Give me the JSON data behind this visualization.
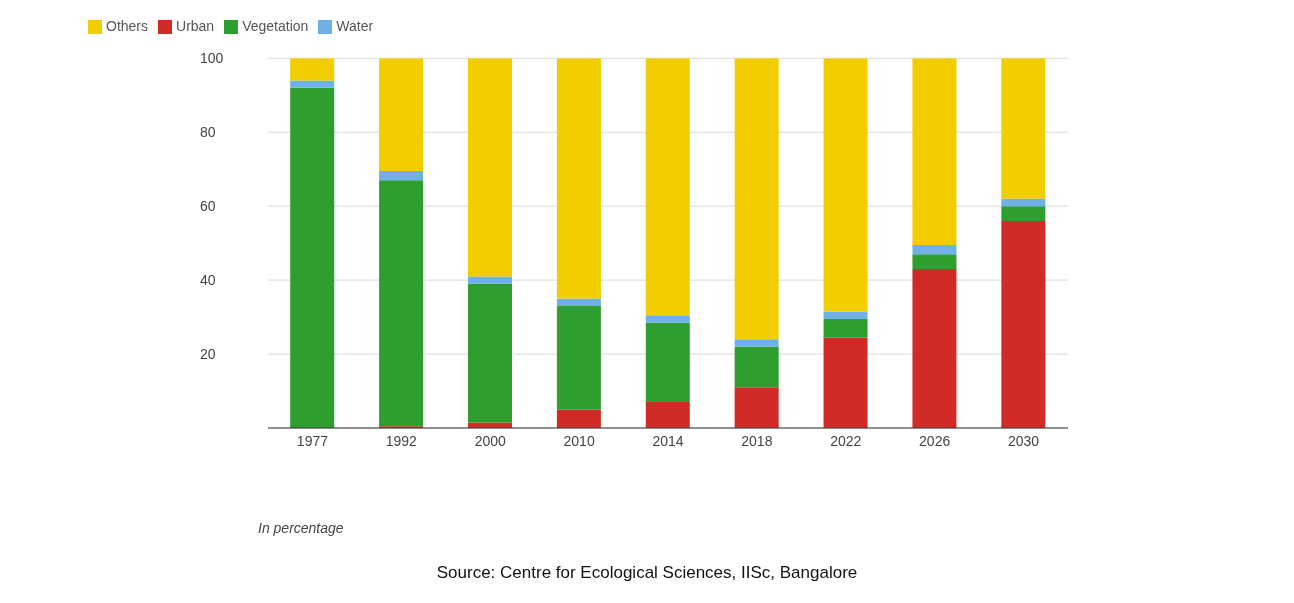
{
  "chart_data": {
    "type": "bar",
    "stacked": true,
    "categories": [
      "1977",
      "1992",
      "2000",
      "2010",
      "2014",
      "2018",
      "2022",
      "2026",
      "2030"
    ],
    "series": [
      {
        "name": "Urban",
        "color": "#d12b27",
        "values": [
          0,
          0.5,
          1.5,
          5,
          7,
          11,
          24.5,
          43,
          56
        ]
      },
      {
        "name": "Vegetation",
        "color": "#2e9e2e",
        "values": [
          92,
          66.5,
          37.5,
          28,
          21.5,
          11,
          5,
          4,
          4
        ]
      },
      {
        "name": "Water",
        "color": "#6fb1e6",
        "values": [
          2,
          2.5,
          2,
          2,
          2,
          2,
          2,
          2.5,
          2
        ]
      },
      {
        "name": "Others",
        "color": "#f2cd00",
        "values": [
          6,
          30.5,
          59,
          65,
          69.5,
          76,
          68.5,
          50.5,
          38
        ]
      }
    ],
    "ylim": [
      0,
      100
    ],
    "yticks": [
      20,
      40,
      60,
      80,
      100
    ],
    "grid": "y",
    "legend": "top left",
    "annotations": [
      "In percentage",
      "Source: Centre for Ecological Sciences, IISc, Bangalore"
    ]
  }
}
